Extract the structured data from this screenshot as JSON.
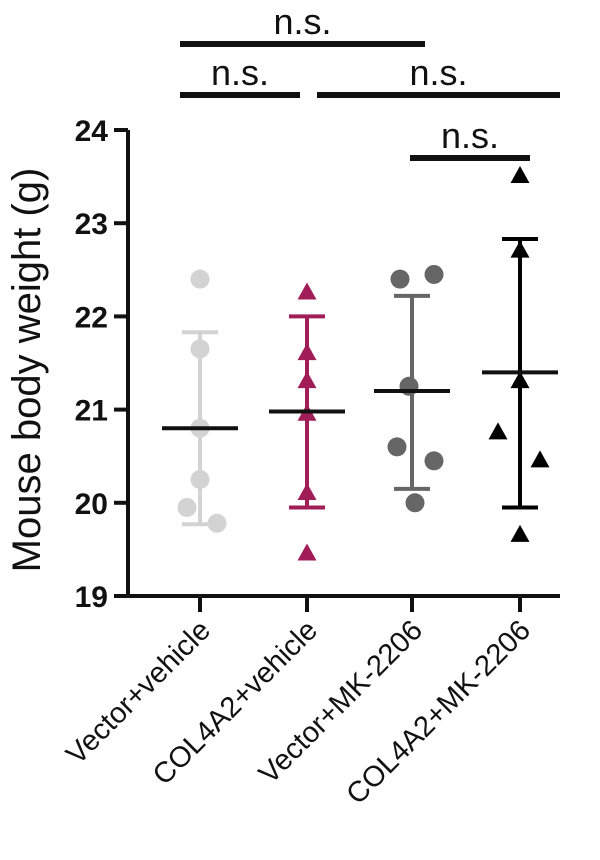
{
  "chart_data": {
    "type": "scatter",
    "title": "",
    "xlabel": "",
    "ylabel": "Mouse body weight (g)",
    "ylim": [
      19,
      24
    ],
    "yticks": [
      "19",
      "20",
      "21",
      "22",
      "23",
      "24"
    ],
    "grid": false,
    "categories": [
      "Vector+vehicle",
      "COL4A2+vehicle",
      "Vector+MK-2206",
      "COL4A2+MK-2206"
    ],
    "series": [
      {
        "category": "Vector+vehicle",
        "color": "#d3d3d3",
        "marker": "circle",
        "points": [
          22.4,
          21.65,
          20.8,
          20.25,
          19.95,
          19.78
        ],
        "mean": 20.8,
        "sd_upper": 21.83,
        "sd_lower": 19.77
      },
      {
        "category": "COL4A2+vehicle",
        "color": "#a11d57",
        "marker": "triangle",
        "points": [
          22.25,
          21.6,
          21.3,
          20.95,
          20.1,
          19.45
        ],
        "mean": 20.98,
        "sd_upper": 22.0,
        "sd_lower": 19.95
      },
      {
        "category": "Vector+MK-2206",
        "color": "#666666",
        "marker": "circle",
        "points": [
          22.4,
          22.45,
          21.25,
          20.6,
          20.45,
          20.0
        ],
        "mean": 21.2,
        "sd_upper": 22.22,
        "sd_lower": 20.15
      },
      {
        "category": "COL4A2+MK-2206",
        "color": "#000000",
        "marker": "triangle",
        "points": [
          23.5,
          22.7,
          21.3,
          20.75,
          20.45,
          19.65
        ],
        "mean": 21.4,
        "sd_upper": 22.83,
        "sd_lower": 19.95
      }
    ],
    "annotations": [
      {
        "text": "n.s.",
        "from": "Vector+vehicle",
        "to": "Vector+MK-2206"
      },
      {
        "text": "n.s.",
        "from": "Vector+vehicle",
        "to": "COL4A2+vehicle"
      },
      {
        "text": "n.s.",
        "from": "COL4A2+vehicle",
        "to": "COL4A2+MK-2206"
      },
      {
        "text": "n.s.",
        "from": "Vector+MK-2206",
        "to": "COL4A2+MK-2206"
      }
    ]
  }
}
